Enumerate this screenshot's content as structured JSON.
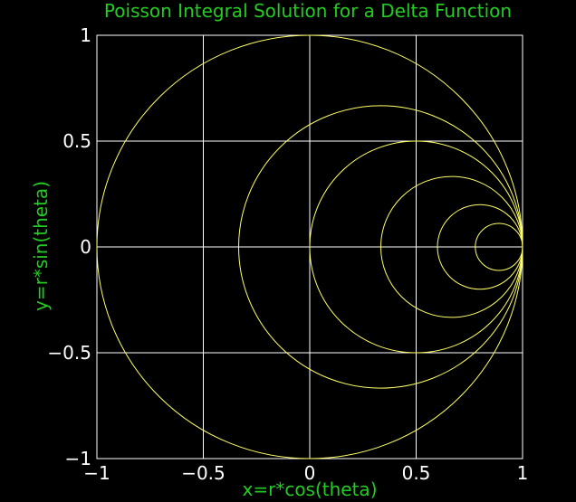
{
  "chart_data": {
    "type": "line",
    "title": "Poisson Integral Solution for a Delta Function",
    "xlabel": "x=r*cos(theta)",
    "ylabel": "y=r*sin(theta)",
    "xlim": [
      -1,
      1
    ],
    "ylim": [
      -1,
      1
    ],
    "xticks": [
      -1,
      -0.5,
      0,
      0.5,
      1
    ],
    "yticks": [
      -1,
      -0.5,
      0,
      0.5,
      1
    ],
    "xtick_labels": [
      "−1",
      "−0.5",
      "0",
      "0.5",
      "1"
    ],
    "ytick_labels": [
      "−1",
      "−0.5",
      "0",
      "0.5",
      "1"
    ],
    "grid": true,
    "series": [
      {
        "center": [
          0,
          0
        ],
        "radius": 1
      },
      {
        "center": [
          0.333,
          0
        ],
        "radius": 0.667
      },
      {
        "center": [
          0.5,
          0
        ],
        "radius": 0.5
      },
      {
        "center": [
          0.667,
          0
        ],
        "radius": 0.333
      },
      {
        "center": [
          0.8,
          0
        ],
        "radius": 0.2
      },
      {
        "center": [
          0.889,
          0
        ],
        "radius": 0.111
      }
    ],
    "colors": {
      "background": "#000000",
      "curve": "#ffff66",
      "grid": "#ffffff",
      "text_label": "#22cc22",
      "tick_text": "#ffffff"
    }
  }
}
